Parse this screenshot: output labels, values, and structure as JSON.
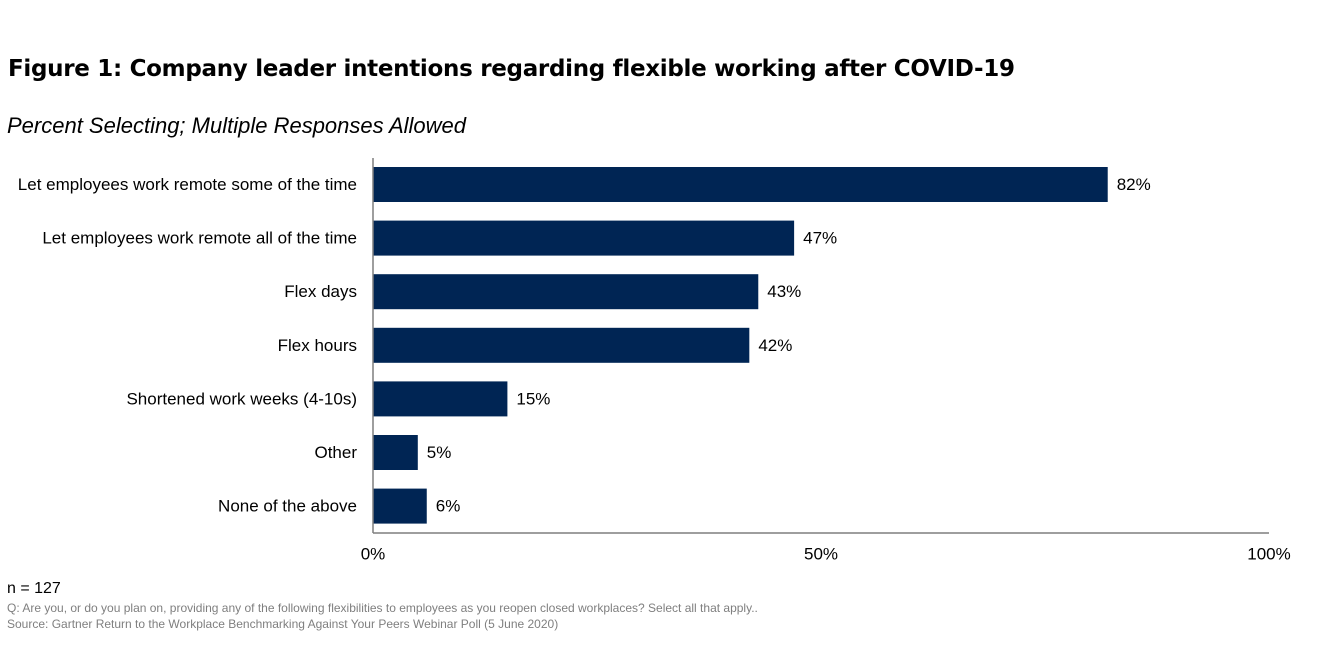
{
  "title": "Figure 1: Company leader intentions regarding flexible working after COVID-19",
  "subtitle": "Percent Selecting; Multiple Responses Allowed",
  "chart_data": {
    "type": "bar",
    "orientation": "horizontal",
    "categories": [
      "Let employees work remote some of the time",
      "Let employees work remote all of the time",
      "Flex days",
      "Flex hours",
      "Shortened work weeks (4-10s)",
      "Other",
      "None of the above"
    ],
    "values": [
      82,
      47,
      43,
      42,
      15,
      5,
      6
    ],
    "value_labels": [
      "82%",
      "47%",
      "43%",
      "42%",
      "15%",
      "5%",
      "6%"
    ],
    "xlim": [
      0,
      100
    ],
    "x_ticks": [
      0,
      50,
      100
    ],
    "x_tick_labels": [
      "0%",
      "50%",
      "100%"
    ],
    "bar_color": "#002554",
    "grid": false,
    "legend": "none"
  },
  "footer": {
    "n": "n = 127",
    "question": "Q: Are you, or do you plan on, providing any of the following flexibilities to employees as you reopen closed workplaces? Select all that apply..",
    "source": "Source: Gartner Return to the Workplace Benchmarking Against Your Peers Webinar Poll (5 June 2020)"
  }
}
